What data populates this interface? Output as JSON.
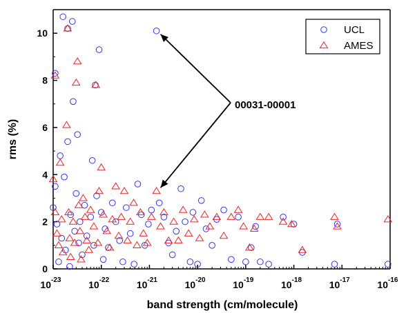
{
  "chart_data": {
    "type": "scatter",
    "xlabel": "band strength (cm/molecule)",
    "ylabel": "rms (%)",
    "xscale": "log",
    "xlim": [
      1e-23,
      1e-16
    ],
    "ylim": [
      0,
      11
    ],
    "x_ticks": [
      {
        "value": 1e-23,
        "base": "10",
        "exp": "-23"
      },
      {
        "value": 1e-22,
        "base": "10",
        "exp": "-22"
      },
      {
        "value": 1e-21,
        "base": "10",
        "exp": "-21"
      },
      {
        "value": 1e-20,
        "base": "10",
        "exp": "-20"
      },
      {
        "value": 1e-19,
        "base": "10",
        "exp": "-19"
      },
      {
        "value": 1e-18,
        "base": "10",
        "exp": "-18"
      },
      {
        "value": 1e-17,
        "base": "10",
        "exp": "-17"
      },
      {
        "value": 1e-16,
        "base": "10",
        "exp": "-16"
      }
    ],
    "y_ticks": [
      0,
      2,
      4,
      6,
      8,
      10
    ],
    "grid": false,
    "legend_position": "top-right",
    "annotation": {
      "text": "00031-00001",
      "points_to": [
        [
          1.4e-21,
          10.1
        ],
        [
          1.4e-21,
          3.3
        ]
      ]
    },
    "series": [
      {
        "name": "UCL",
        "marker": "circle",
        "color": "#3333ee",
        "points": [
          [
            1.1e-23,
            3.5
          ],
          [
            1e-23,
            2.6
          ],
          [
            1.2e-23,
            1.9
          ],
          [
            1.5e-23,
            1.3
          ],
          [
            1.8e-23,
            0.8
          ],
          [
            1.3e-23,
            0.3
          ],
          [
            2.2e-23,
            0.1
          ],
          [
            1.4e-23,
            4.8
          ],
          [
            1.6e-23,
            10.7
          ],
          [
            2e-23,
            10.2
          ],
          [
            2.5e-23,
            10.5
          ],
          [
            1.1e-23,
            8.3
          ],
          [
            2.6e-23,
            7.1
          ],
          [
            3.2e-23,
            5.7
          ],
          [
            2e-23,
            5.4
          ],
          [
            1.7e-23,
            3.9
          ],
          [
            3e-23,
            3.2
          ],
          [
            2.3e-23,
            2.3
          ],
          [
            3.6e-23,
            2.0
          ],
          [
            2.8e-23,
            1.6
          ],
          [
            3.4e-23,
            1.1
          ],
          [
            4e-23,
            0.6
          ],
          [
            4.5e-23,
            2.7
          ],
          [
            5e-23,
            1.4
          ],
          [
            6e-23,
            2.2
          ],
          [
            7e-23,
            1.0
          ],
          [
            6.5e-23,
            4.6
          ],
          [
            8e-23,
            3.1
          ],
          [
            7.5e-23,
            7.8
          ],
          [
            9e-23,
            9.3
          ],
          [
            1e-22,
            2.4
          ],
          [
            1.2e-22,
            1.7
          ],
          [
            1.4e-22,
            0.9
          ],
          [
            1.1e-22,
            0.4
          ],
          [
            1.7e-22,
            2.8
          ],
          [
            2e-22,
            2.0
          ],
          [
            2.4e-22,
            1.2
          ],
          [
            2.8e-22,
            0.3
          ],
          [
            3.3e-22,
            2.6
          ],
          [
            4e-22,
            1.5
          ],
          [
            4.8e-22,
            0.2
          ],
          [
            5.7e-22,
            3.6
          ],
          [
            6.8e-22,
            2.3
          ],
          [
            8e-22,
            1.0
          ],
          [
            9.5e-22,
            1.9
          ],
          [
            1.1e-21,
            2.5
          ],
          [
            1.4e-21,
            10.1
          ],
          [
            1.6e-21,
            2.8
          ],
          [
            2e-21,
            2.2
          ],
          [
            2.5e-21,
            1.1
          ],
          [
            3e-21,
            0.6
          ],
          [
            3.6e-21,
            1.6
          ],
          [
            4.5e-21,
            3.4
          ],
          [
            5.5e-21,
            2.0
          ],
          [
            7e-21,
            0.3
          ],
          [
            8e-21,
            2.4
          ],
          [
            1e-20,
            0.2
          ],
          [
            1.2e-20,
            2.9
          ],
          [
            1.5e-20,
            1.7
          ],
          [
            2e-20,
            1.0
          ],
          [
            2.5e-20,
            2.1
          ],
          [
            3.5e-20,
            2.5
          ],
          [
            5e-20,
            0.4
          ],
          [
            7e-20,
            2.2
          ],
          [
            1e-19,
            0.3
          ],
          [
            1.3e-19,
            0.9
          ],
          [
            1.6e-19,
            1.8
          ],
          [
            2e-19,
            0.3
          ],
          [
            3e-19,
            0.2
          ],
          [
            6e-19,
            2.2
          ],
          [
            1e-18,
            1.9
          ],
          [
            1.5e-18,
            0.7
          ],
          [
            7e-18,
            0.2
          ],
          [
            8e-18,
            1.9
          ],
          [
            9e-17,
            0.2
          ]
        ]
      },
      {
        "name": "AMES",
        "marker": "triangle",
        "color": "#ee2222",
        "points": [
          [
            1e-23,
            3.8
          ],
          [
            1.1e-23,
            2.4
          ],
          [
            1.2e-23,
            1.5
          ],
          [
            1.3e-23,
            1.0
          ],
          [
            1.1e-23,
            8.2
          ],
          [
            1.4e-23,
            4.5
          ],
          [
            1.5e-23,
            2.1
          ],
          [
            1.6e-23,
            0.7
          ],
          [
            1.9e-23,
            6.1
          ],
          [
            2e-23,
            10.2
          ],
          [
            2.1e-23,
            2.4
          ],
          [
            2.2e-23,
            1.3
          ],
          [
            2.3e-23,
            0.5
          ],
          [
            2.6e-23,
            2.0
          ],
          [
            2.8e-23,
            1.1
          ],
          [
            3e-23,
            7.9
          ],
          [
            3.2e-23,
            8.8
          ],
          [
            3.4e-23,
            2.7
          ],
          [
            3.6e-23,
            1.6
          ],
          [
            3.8e-23,
            0.4
          ],
          [
            4.2e-23,
            3.0
          ],
          [
            4.6e-23,
            2.2
          ],
          [
            5e-23,
            1.2
          ],
          [
            5.5e-23,
            0.8
          ],
          [
            6e-23,
            2.5
          ],
          [
            7e-23,
            1.8
          ],
          [
            7.7e-23,
            7.8
          ],
          [
            8.5e-23,
            1.1
          ],
          [
            9e-23,
            3.3
          ],
          [
            1e-22,
            4.3
          ],
          [
            1.1e-22,
            2.3
          ],
          [
            1.3e-22,
            1.6
          ],
          [
            1.5e-22,
            0.9
          ],
          [
            1.7e-22,
            2.1
          ],
          [
            2e-22,
            3.5
          ],
          [
            2.3e-22,
            1.4
          ],
          [
            2.6e-22,
            2.2
          ],
          [
            3e-22,
            3.3
          ],
          [
            3.5e-22,
            1.2
          ],
          [
            4e-22,
            2.0
          ],
          [
            4.7e-22,
            2.8
          ],
          [
            5.5e-22,
            1.0
          ],
          [
            6.5e-22,
            2.4
          ],
          [
            7.5e-22,
            1.5
          ],
          [
            9e-22,
            1.1
          ],
          [
            1.1e-21,
            2.2
          ],
          [
            1.4e-21,
            3.3
          ],
          [
            1.7e-21,
            1.8
          ],
          [
            2e-21,
            2.4
          ],
          [
            2.5e-21,
            1.2
          ],
          [
            3.2e-21,
            2.0
          ],
          [
            4e-21,
            1.2
          ],
          [
            5e-21,
            2.5
          ],
          [
            6.5e-21,
            1.5
          ],
          [
            8.5e-21,
            2.1
          ],
          [
            1.1e-20,
            1.3
          ],
          [
            1.4e-20,
            2.3
          ],
          [
            1.8e-20,
            1.8
          ],
          [
            2.5e-20,
            2.2
          ],
          [
            3.5e-20,
            1.4
          ],
          [
            5e-20,
            2.2
          ],
          [
            7e-20,
            2.5
          ],
          [
            9e-20,
            1.8
          ],
          [
            1.2e-19,
            0.9
          ],
          [
            1.5e-19,
            1.7
          ],
          [
            2e-19,
            2.2
          ],
          [
            3e-19,
            2.2
          ],
          [
            6e-19,
            2.0
          ],
          [
            9e-19,
            1.9
          ],
          [
            1.5e-18,
            0.8
          ],
          [
            7e-18,
            2.2
          ],
          [
            8e-18,
            1.8
          ],
          [
            9e-17,
            2.1
          ]
        ]
      }
    ]
  }
}
